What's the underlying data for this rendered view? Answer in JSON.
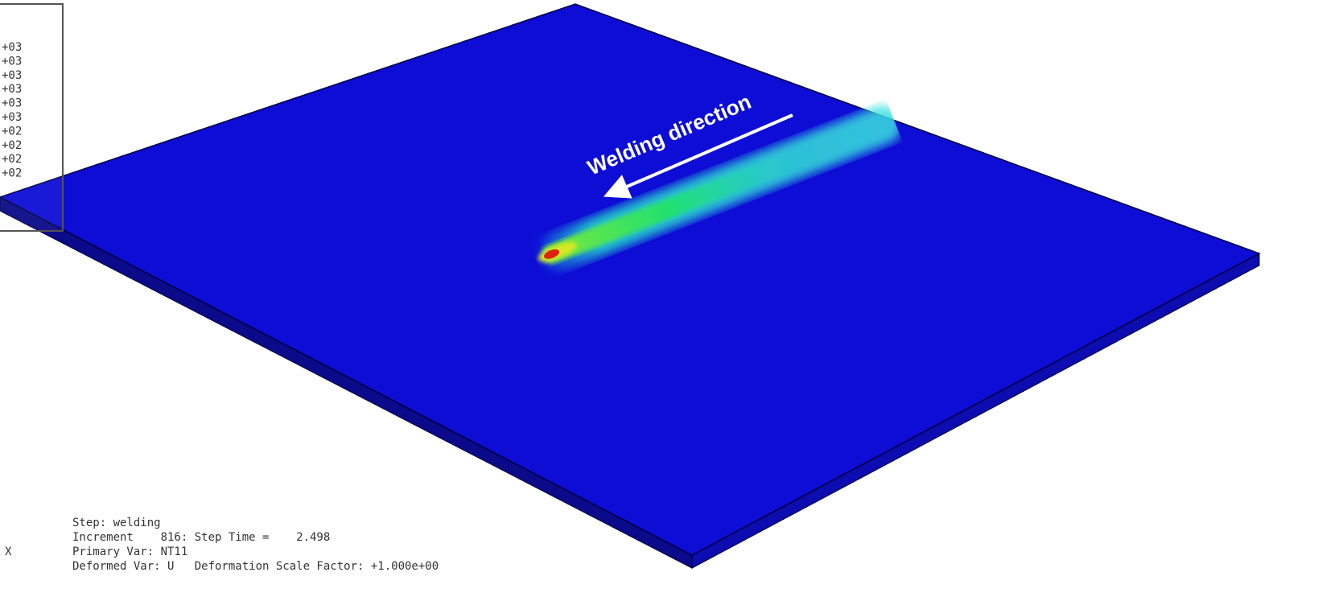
{
  "legend": {
    "labels": [
      "+03",
      "+03",
      "+03",
      "+03",
      "+03",
      "+03",
      "+02",
      "+02",
      "+02",
      "+02"
    ]
  },
  "annotation": "Welding direction",
  "triad": {
    "x_label": "X"
  },
  "info": {
    "lines": [
      "Step: welding",
      "Increment    816: Step Time =    2.498",
      "Primary Var: NT11",
      "Deformed Var: U   Deformation Scale Factor: +1.000e+00"
    ]
  }
}
